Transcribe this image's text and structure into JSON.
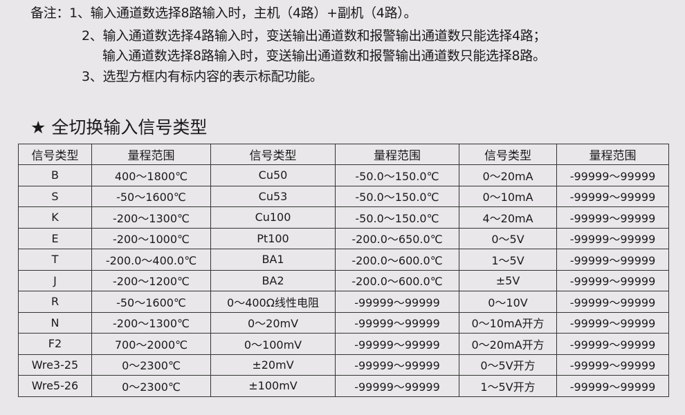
{
  "notes": {
    "label": "备注：",
    "lines": [
      "1、输入通道数选择8路输入时，主机（4路）+副机（4路）。",
      "2、输入通道数选择4路输入时，变送输出通道数和报警输出通道数只能选择4路；",
      "输入通道数选择8路输入时，变送输出通道数和报警输出通道数只能选择8路。",
      "3、选型方框内有标内容的表示标配功能。"
    ]
  },
  "section_title": "★ 全切换输入信号类型",
  "table": {
    "headers": [
      "信号类型",
      "量程范围",
      "信号类型",
      "量程范围",
      "信号类型",
      "量程范围"
    ],
    "rows": [
      [
        "B",
        "400～1800℃",
        "Cu50",
        "-50.0～150.0℃",
        "0～20mA",
        "-99999～99999"
      ],
      [
        "S",
        "-50～1600℃",
        "Cu53",
        "-50.0～150.0℃",
        "0～10mA",
        "-99999～99999"
      ],
      [
        "K",
        "-200～1300℃",
        "Cu100",
        "-50.0～150.0℃",
        "4～20mA",
        "-99999～99999"
      ],
      [
        "E",
        "-200～1000℃",
        "Pt100",
        "-200.0～650.0℃",
        "0～5V",
        "-99999～99999"
      ],
      [
        "T",
        "-200.0～400.0℃",
        "BA1",
        "-200.0～600.0℃",
        "1～5V",
        "-99999～99999"
      ],
      [
        "J",
        "-200～1200℃",
        "BA2",
        "-200.0～600.0℃",
        "±5V",
        "-99999～99999"
      ],
      [
        "R",
        "-50～1600℃",
        "0～400Ω线性电阻",
        "-99999～99999",
        "0～10V",
        "-99999～99999"
      ],
      [
        "N",
        "-200～1300℃",
        "0～20mV",
        "-99999～99999",
        "0～10mA开方",
        "-99999～99999"
      ],
      [
        "F2",
        "700～2000℃",
        "0～100mV",
        "-99999～99999",
        "0～20mA开方",
        "-99999～99999"
      ],
      [
        "Wre3-25",
        "0～2300℃",
        "±20mV",
        "-99999～99999",
        "0～5V开方",
        "-99999～99999"
      ],
      [
        "Wre5-26",
        "0～2300℃",
        "±100mV",
        "-99999～99999",
        "1～5V开方",
        "-99999～99999"
      ]
    ]
  }
}
